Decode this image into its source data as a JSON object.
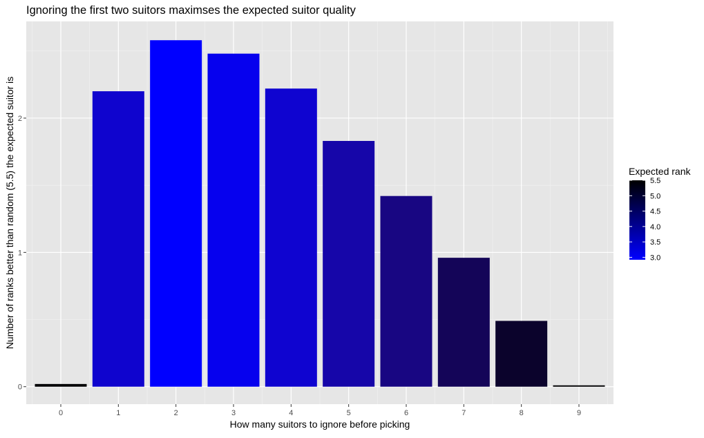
{
  "chart_data": {
    "type": "bar",
    "title": "Ignoring the first two suitors maximses the expected suitor quality",
    "xlabel": "How many suitors to ignore before picking",
    "ylabel": "Number of ranks better than random (5.5) the expected suitor is",
    "categories": [
      "0",
      "1",
      "2",
      "3",
      "4",
      "5",
      "6",
      "7",
      "8",
      "9"
    ],
    "values": [
      0.02,
      2.2,
      2.58,
      2.48,
      2.22,
      1.83,
      1.42,
      0.96,
      0.49,
      0.01
    ],
    "expected_rank": [
      5.48,
      3.3,
      2.92,
      3.02,
      3.28,
      3.67,
      4.08,
      4.54,
      5.01,
      5.49
    ],
    "ylim": [
      -0.13,
      2.72
    ],
    "yticks": [
      0,
      1,
      2
    ],
    "grid": true,
    "legend": {
      "title": "Expected rank",
      "placement": "right",
      "ticks": [
        "5.5",
        "5.0",
        "4.5",
        "4.0",
        "3.5",
        "3.0"
      ],
      "tick_values": [
        5.5,
        5.0,
        4.5,
        4.0,
        3.5,
        3.0
      ],
      "range": [
        2.92,
        5.5
      ]
    },
    "colors": {
      "low_rank": "#0000ff",
      "high_rank": "#000000",
      "panel": "#e6e6e6",
      "grid": "#ffffff"
    }
  }
}
